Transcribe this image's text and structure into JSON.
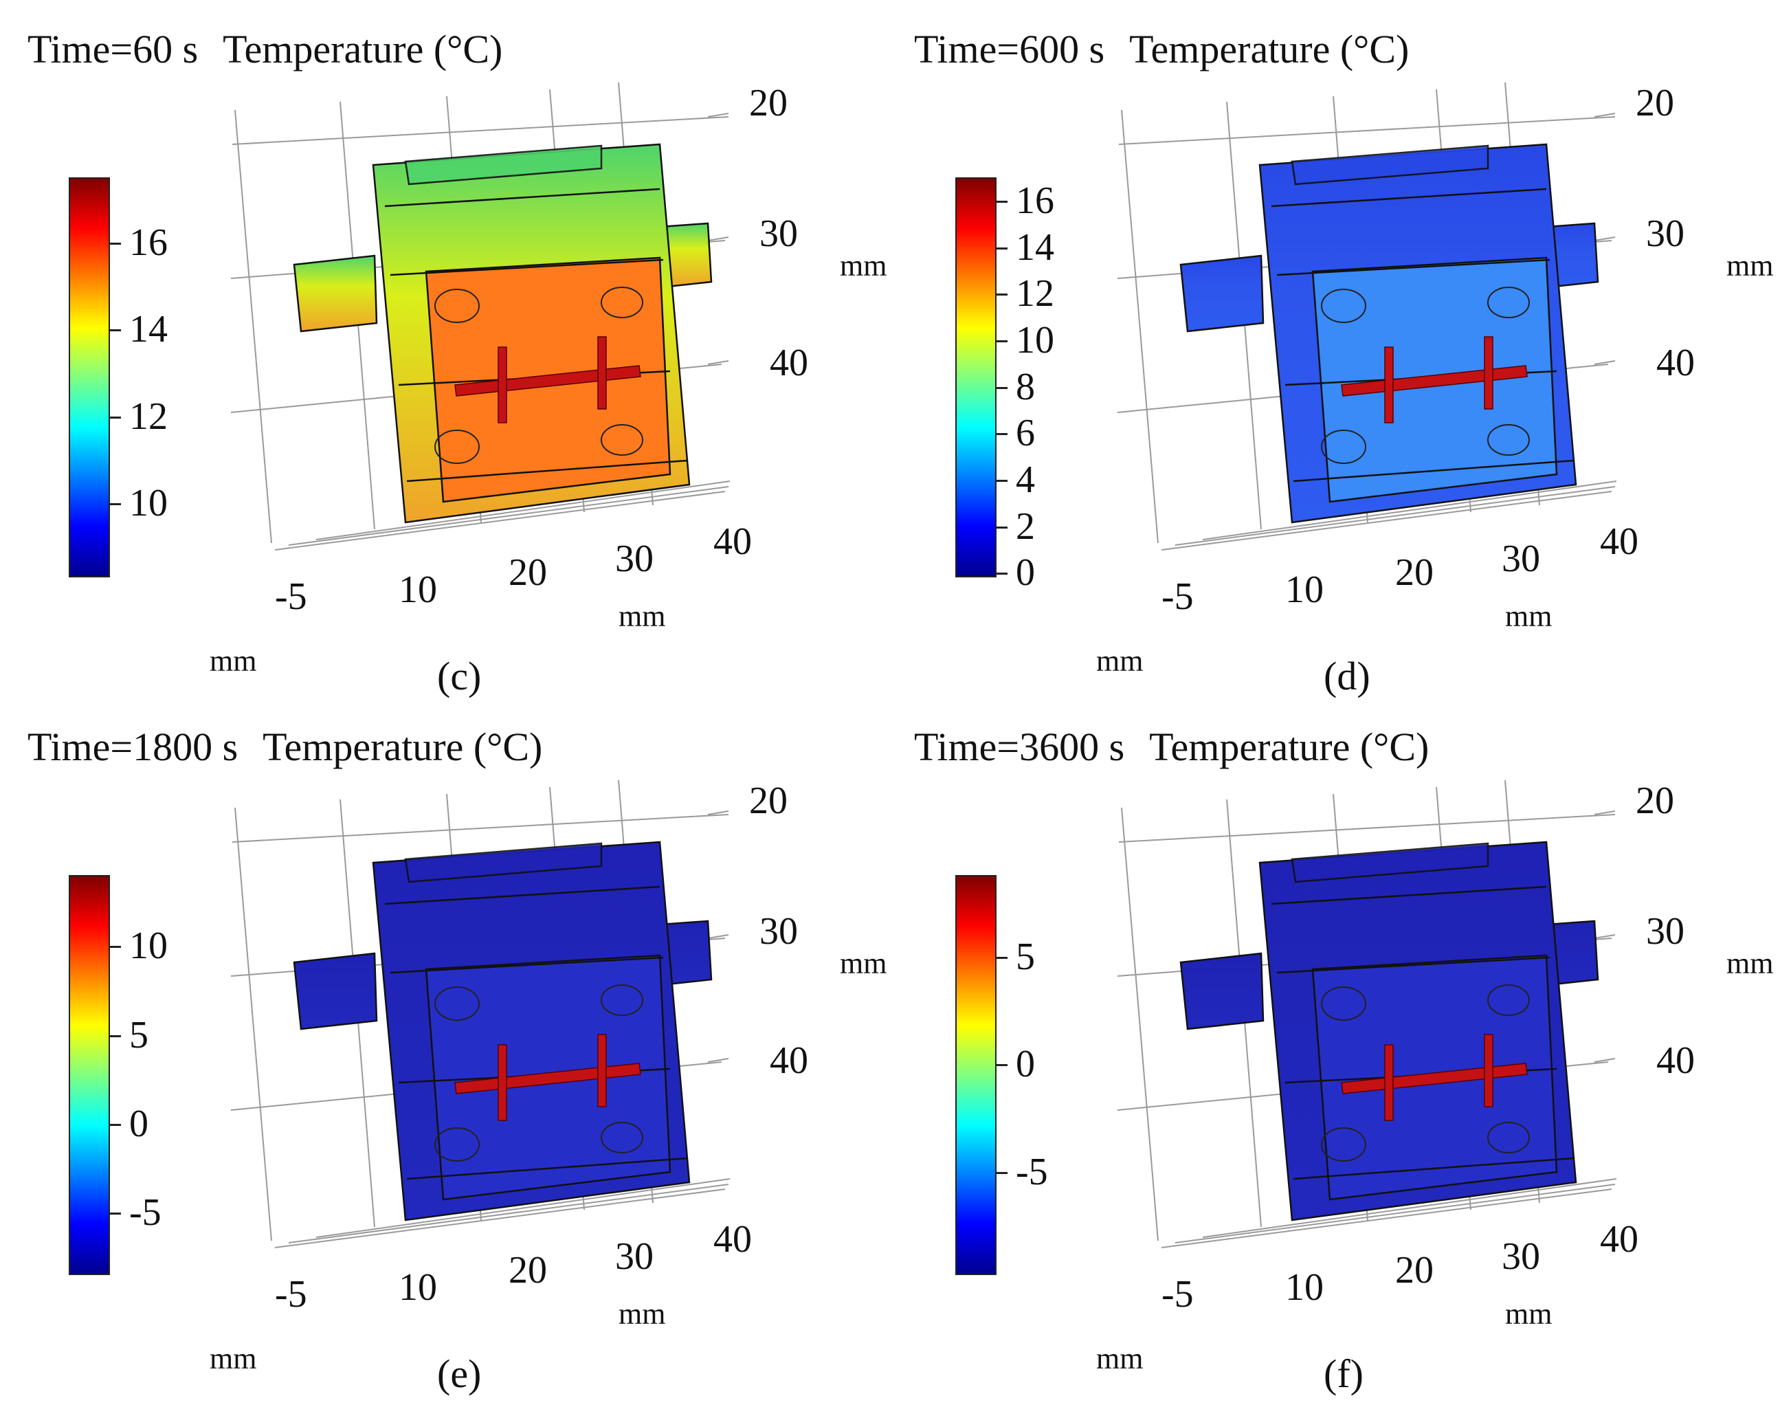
{
  "panels": [
    {
      "id": "c",
      "time": "Time=60 s",
      "quantity": "Temperature (°C)",
      "label": "(c)",
      "colorbar": {
        "min": 8.3,
        "max": 17.5,
        "ticks": [
          "16",
          "14",
          "12",
          "10"
        ],
        "tick_values": [
          16,
          14,
          12,
          10
        ]
      },
      "colors": {
        "top": "#4fd46a",
        "mid": "#d9ef1a",
        "body": "#f0a32a",
        "inner": "#ff7a1c",
        "core": "#c41214"
      }
    },
    {
      "id": "d",
      "time": "Time=600 s",
      "quantity": "Temperature (°C)",
      "label": "(d)",
      "colorbar": {
        "min": -0.2,
        "max": 17,
        "ticks": [
          "16",
          "14",
          "12",
          "10",
          "8",
          "6",
          "4",
          "2",
          "0"
        ],
        "tick_values": [
          16,
          14,
          12,
          10,
          8,
          6,
          4,
          2,
          0
        ]
      },
      "colors": {
        "top": "#2848e6",
        "mid": "#2d55ec",
        "body": "#2e5bf0",
        "inner": "#3a8af7",
        "core": "#c41214"
      }
    },
    {
      "id": "e",
      "time": "Time=1800 s",
      "quantity": "Temperature (°C)",
      "label": "(e)",
      "colorbar": {
        "min": -8.5,
        "max": 14,
        "ticks": [
          "10",
          "5",
          "0",
          "-5"
        ],
        "tick_values": [
          10,
          5,
          0,
          -5
        ]
      },
      "colors": {
        "top": "#1f22b4",
        "mid": "#2025b8",
        "body": "#2228bd",
        "inner": "#262ec8",
        "core": "#c41214"
      }
    },
    {
      "id": "f",
      "time": "Time=3600 s",
      "quantity": "Temperature (°C)",
      "label": "(f)",
      "colorbar": {
        "min": -9.8,
        "max": 8.8,
        "ticks": [
          "5",
          "0",
          "-5"
        ],
        "tick_values": [
          5,
          0,
          -5
        ]
      },
      "colors": {
        "top": "#1f22b4",
        "mid": "#2025b8",
        "body": "#2228bd",
        "inner": "#262ec8",
        "core": "#c41214"
      }
    }
  ],
  "axes": {
    "z_ticks": [
      "20",
      "30",
      "40"
    ],
    "y_ticks": [
      "40",
      "30",
      "20",
      "10",
      "-5"
    ],
    "x_unit": "mm",
    "y_unit": "mm",
    "z_unit": "mm"
  },
  "jet_stops": [
    "#00008f",
    "#0000ff",
    "#0080ff",
    "#00ffff",
    "#80ff80",
    "#ffff00",
    "#ff8000",
    "#ff0000",
    "#800000"
  ]
}
